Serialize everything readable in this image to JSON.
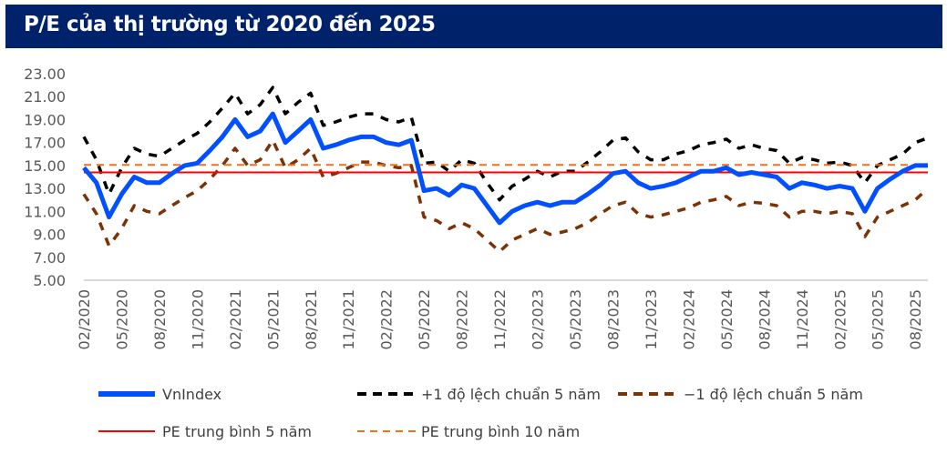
{
  "header": {
    "title": "P/E của thị trường từ 2020 đến 2025"
  },
  "chart_data": {
    "type": "line",
    "title": "P/E của thị trường từ 2020 đến 2025",
    "xlabel": "",
    "ylabel": "",
    "ylim": [
      5,
      23
    ],
    "yticks": [
      "23.00",
      "21.00",
      "19.00",
      "17.00",
      "15.00",
      "13.00",
      "11.00",
      "9.00",
      "7.00",
      "5.00"
    ],
    "ytick_values": [
      23,
      21,
      19,
      17,
      15,
      13,
      11,
      9,
      7,
      5
    ],
    "x_start": "02/2020",
    "x_end": "09/2025",
    "xticks": [
      "02/2020",
      "05/2020",
      "08/2020",
      "11/2020",
      "02/2021",
      "05/2021",
      "08/2021",
      "11/2021",
      "02/2022",
      "05/2022",
      "08/2022",
      "11/2022",
      "02/2023",
      "05/2023",
      "08/2023",
      "11/2023",
      "02/2024",
      "05/2024",
      "08/2024",
      "11/2024",
      "02/2025",
      "05/2025",
      "08/2025"
    ],
    "grid": false,
    "legend_position": "bottom",
    "series": [
      {
        "name": "VnIndex",
        "color": "#0050ff",
        "style": "solid",
        "values": [
          14.8,
          13.5,
          10.5,
          12.5,
          14.0,
          13.5,
          13.5,
          14.3,
          15.0,
          15.2,
          16.3,
          17.5,
          19.0,
          17.5,
          18.0,
          19.5,
          17.0,
          18.0,
          19.0,
          16.5,
          16.8,
          17.2,
          17.5,
          17.5,
          17.0,
          16.8,
          17.2,
          12.8,
          13.0,
          12.4,
          13.3,
          13.0,
          11.5,
          10.0,
          11.0,
          11.5,
          11.8,
          11.5,
          11.8,
          11.8,
          12.5,
          13.3,
          14.3,
          14.5,
          13.5,
          13.0,
          13.2,
          13.5,
          14.0,
          14.5,
          14.5,
          14.8,
          14.2,
          14.4,
          14.2,
          14.0,
          13.0,
          13.5,
          13.3,
          13.0,
          13.2,
          13.0,
          11.0,
          13.0,
          13.8,
          14.5,
          15.0,
          15.0
        ]
      },
      {
        "name": "+1 độ lệch chuẩn 5 năm",
        "color": "#000000",
        "style": "dashed",
        "values": [
          17.5,
          15.5,
          12.5,
          14.8,
          16.5,
          16.0,
          15.8,
          16.5,
          17.2,
          17.8,
          18.8,
          20.0,
          21.3,
          19.5,
          20.3,
          21.8,
          19.5,
          20.5,
          21.3,
          18.5,
          18.8,
          19.2,
          19.5,
          19.5,
          19.0,
          18.8,
          19.2,
          15.2,
          15.3,
          14.5,
          15.5,
          15.2,
          13.5,
          12.0,
          13.2,
          13.8,
          14.5,
          14.0,
          14.5,
          14.5,
          15.3,
          16.2,
          17.2,
          17.4,
          16.2,
          15.5,
          15.5,
          16.0,
          16.3,
          16.8,
          17.0,
          17.3,
          16.5,
          16.8,
          16.5,
          16.3,
          15.2,
          15.7,
          15.5,
          15.2,
          15.3,
          15.0,
          13.5,
          15.0,
          15.5,
          16.0,
          17.0,
          17.4
        ]
      },
      {
        "name": "−1 độ lệch chuẩn 5 năm",
        "color": "#7b3306",
        "style": "dashed",
        "values": [
          12.5,
          10.8,
          8.0,
          9.5,
          11.5,
          11.0,
          10.8,
          11.5,
          12.2,
          12.8,
          13.8,
          15.0,
          16.5,
          15.0,
          15.5,
          17.2,
          14.8,
          15.5,
          16.5,
          14.0,
          14.3,
          14.8,
          15.3,
          15.3,
          15.0,
          14.8,
          15.0,
          10.5,
          10.2,
          9.5,
          10.0,
          9.5,
          8.5,
          7.5,
          8.5,
          9.0,
          9.5,
          9.0,
          9.2,
          9.5,
          10.0,
          10.8,
          11.5,
          11.8,
          10.8,
          10.5,
          10.7,
          11.0,
          11.3,
          11.8,
          12.0,
          12.3,
          11.5,
          11.8,
          11.7,
          11.5,
          10.5,
          11.0,
          11.0,
          10.8,
          11.0,
          10.8,
          8.8,
          10.5,
          11.0,
          11.5,
          12.0,
          13.0
        ]
      },
      {
        "name": "PE trung bình 5 năm",
        "color": "#ff0000",
        "style": "solid",
        "constant": 14.4
      },
      {
        "name": "PE trung bình 10 năm",
        "color": "#f07020",
        "style": "dashed",
        "constant": 15.05
      }
    ]
  }
}
